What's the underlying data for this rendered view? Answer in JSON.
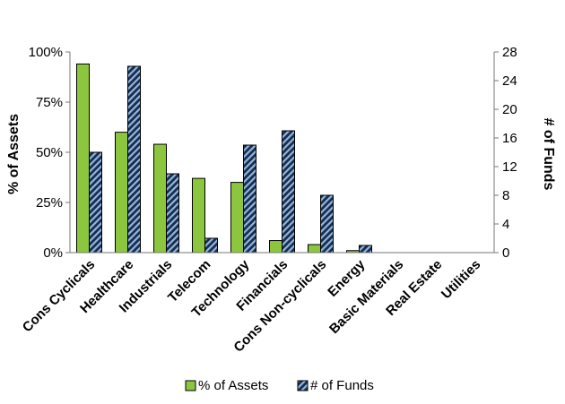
{
  "chart_data": {
    "type": "bar",
    "title": "",
    "categories": [
      "Cons Cyclicals",
      "Healthcare",
      "Industrials",
      "Telecom",
      "Technology",
      "Financials",
      "Cons Non-cyclicals",
      "Energy",
      "Basic Materials",
      "Real Estate",
      "Utilities"
    ],
    "series": [
      {
        "name": "% of Assets",
        "axis": "left",
        "color": "#8cc63f",
        "values": [
          94,
          60,
          54,
          37,
          35,
          6,
          4,
          1,
          0,
          0,
          0
        ]
      },
      {
        "name": "# of Funds",
        "axis": "right",
        "color": "#1a2b4c",
        "pattern": "diagonal-stripes",
        "pattern_color": "#8fb8e0",
        "values": [
          14,
          26,
          11,
          2,
          15,
          17,
          8,
          1,
          0,
          0,
          0
        ]
      }
    ],
    "y_left": {
      "label": "% of Assets",
      "ylim": [
        0,
        100
      ],
      "ticks": [
        0,
        25,
        50,
        75,
        100
      ],
      "tick_labels": [
        "0%",
        "25%",
        "50%",
        "75%",
        "100%"
      ]
    },
    "y_right": {
      "label": "# of Funds",
      "ylim": [
        0,
        28
      ],
      "ticks": [
        0,
        4,
        8,
        12,
        16,
        20,
        24,
        28
      ],
      "tick_labels": [
        "0",
        "4",
        "8",
        "12",
        "16",
        "20",
        "24",
        "28"
      ]
    },
    "xlabel": "",
    "grid": false,
    "legend": {
      "position": "bottom",
      "items": [
        "% of Assets",
        "# of Funds"
      ]
    }
  }
}
